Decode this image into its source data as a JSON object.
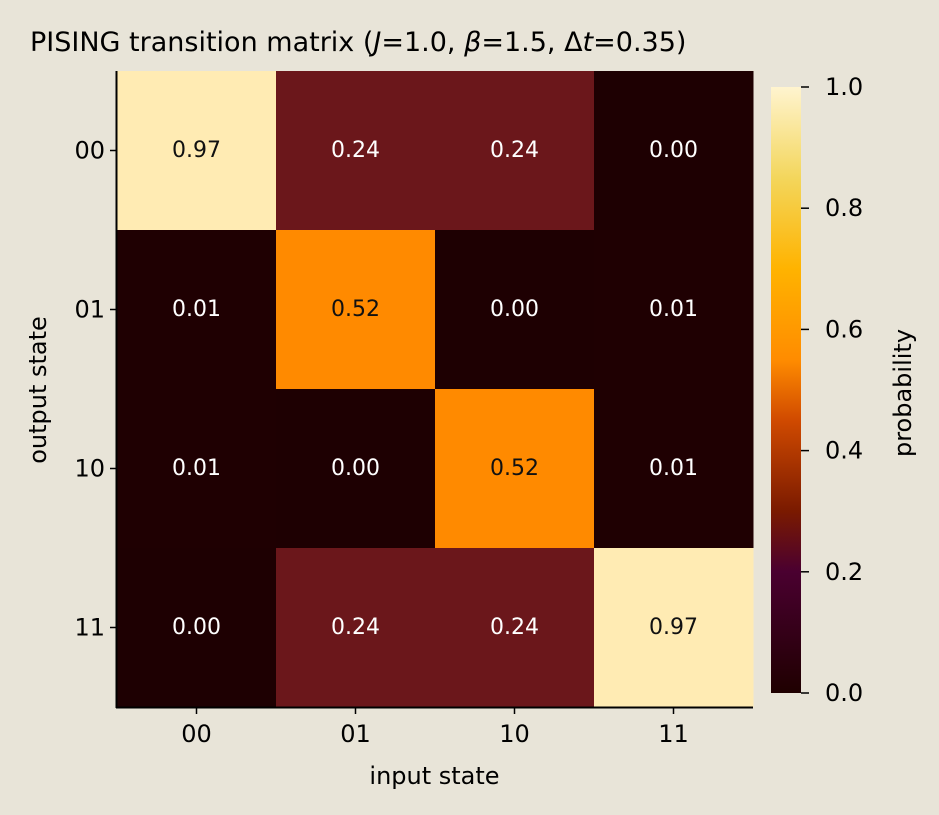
{
  "chart_data": {
    "type": "heatmap",
    "title": {
      "prefix": "PISING transition matrix (",
      "J_symbol": "J",
      "J_value": "=1.0, ",
      "beta_symbol": "β",
      "beta_value": "=1.5, Δ",
      "t_symbol": "t",
      "t_value": "=0.35)"
    },
    "xlabel": "input state",
    "ylabel": "output state",
    "x_categories": [
      "00",
      "01",
      "10",
      "11"
    ],
    "y_categories": [
      "00",
      "01",
      "10",
      "11"
    ],
    "values": [
      [
        0.97,
        0.24,
        0.24,
        0.0
      ],
      [
        0.01,
        0.52,
        0.0,
        0.01
      ],
      [
        0.01,
        0.0,
        0.52,
        0.01
      ],
      [
        0.0,
        0.24,
        0.24,
        0.97
      ]
    ],
    "cell_labels": [
      [
        "0.97",
        "0.24",
        "0.24",
        "0.00"
      ],
      [
        "0.01",
        "0.52",
        "0.00",
        "0.01"
      ],
      [
        "0.01",
        "0.00",
        "0.52",
        "0.01"
      ],
      [
        "0.00",
        "0.24",
        "0.24",
        "0.97"
      ]
    ],
    "colorbar": {
      "label": "probability",
      "range": [
        0,
        1
      ],
      "ticks": [
        0.0,
        0.2,
        0.4,
        0.6,
        0.8,
        1.0
      ],
      "tick_labels": [
        "0.0",
        "0.2",
        "0.4",
        "0.6",
        "0.8",
        "1.0"
      ],
      "colormap": "afmhot-like",
      "stops": [
        {
          "at": 0.0,
          "color": "#1f0000"
        },
        {
          "at": 0.2,
          "color": "#4a0030"
        },
        {
          "at": 0.3,
          "color": "#7a1a00"
        },
        {
          "at": 0.45,
          "color": "#d04a00"
        },
        {
          "at": 0.55,
          "color": "#ff8c00"
        },
        {
          "at": 0.7,
          "color": "#ffb300"
        },
        {
          "at": 0.85,
          "color": "#f3d65c"
        },
        {
          "at": 1.0,
          "color": "#fff4cf"
        }
      ]
    },
    "cell_colors": [
      [
        "#ffebb3",
        "#6b171b",
        "#6b171b",
        "#1e0002"
      ],
      [
        "#1f0002",
        "#ff8a00",
        "#1e0002",
        "#1f0002"
      ],
      [
        "#1f0002",
        "#1e0002",
        "#ff8a00",
        "#1f0002"
      ],
      [
        "#1e0002",
        "#6b171b",
        "#6b171b",
        "#ffebb3"
      ]
    ],
    "label_colors": {
      "dark_cell": "#ffffff",
      "light_cell": "#111111"
    },
    "grid": false
  }
}
